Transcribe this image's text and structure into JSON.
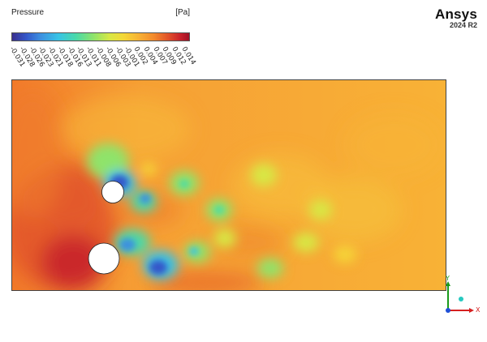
{
  "brand": {
    "name": "Ansys",
    "version": "2024 R2"
  },
  "legend": {
    "title": "Pressure",
    "units": "[Pa]",
    "ticks": [
      "-0.031",
      "-0.028",
      "-0.026",
      "-0.023",
      "-0.021",
      "-0.018",
      "-0.016",
      "-0.013",
      "-0.011",
      "-0.008",
      "-0.006",
      "-0.003",
      "-0.001",
      "0.002",
      "0.004",
      "0.007",
      "0.009",
      "0.012",
      "0.014"
    ],
    "colormap_hex": [
      "#3a2f8f",
      "#3457c9",
      "#3d8fe0",
      "#37c3e6",
      "#49d9a9",
      "#8fe36a",
      "#d7e845",
      "#f4d737",
      "#f7b035",
      "#f38a2c",
      "#e2532a",
      "#c8222b",
      "#a01025"
    ]
  },
  "axes": {
    "x_label": "X",
    "y_label": "Y",
    "x_color": "#d62020",
    "y_color": "#1a9a1a",
    "z_color": "#1f4fd6"
  }
}
